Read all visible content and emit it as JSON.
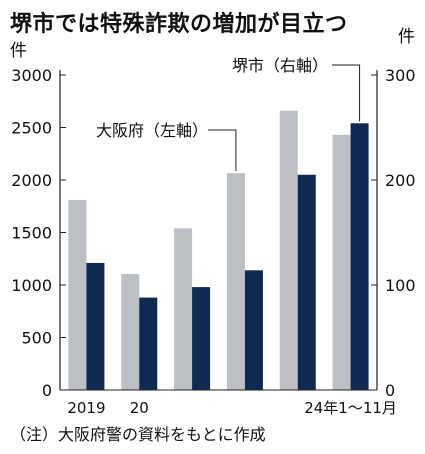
{
  "title": "堺市では特殊詐欺の増加が目立つ",
  "unit_left": "件",
  "unit_right": "件",
  "note": "（注）大阪府警の資料をもとに作成",
  "colors": {
    "osaka_bar": "#bcc0c4",
    "sakai_bar": "#0e2a52",
    "axis": "#222222",
    "text": "#111111"
  },
  "chart_data": {
    "type": "bar",
    "categories": [
      "2019",
      "20",
      "",
      "",
      "",
      "24年1〜11月"
    ],
    "series": [
      {
        "name": "大阪府（左軸）",
        "axis": "left",
        "values": [
          1810,
          1105,
          1540,
          2065,
          2660,
          2430
        ]
      },
      {
        "name": "堺市（右軸）",
        "axis": "right",
        "values": [
          121,
          88,
          98,
          114,
          205,
          254
        ]
      }
    ],
    "left_axis": {
      "ylim": [
        0,
        3000
      ],
      "ticks": [
        "0",
        "500",
        "1000",
        "1500",
        "2000",
        "2500",
        "3000"
      ]
    },
    "right_axis": {
      "ylim": [
        0,
        300
      ],
      "ticks": [
        "0",
        "100",
        "200",
        "300"
      ]
    },
    "annotations": [
      "大阪府（左軸）",
      "堺市（右軸）"
    ],
    "grid": false
  }
}
